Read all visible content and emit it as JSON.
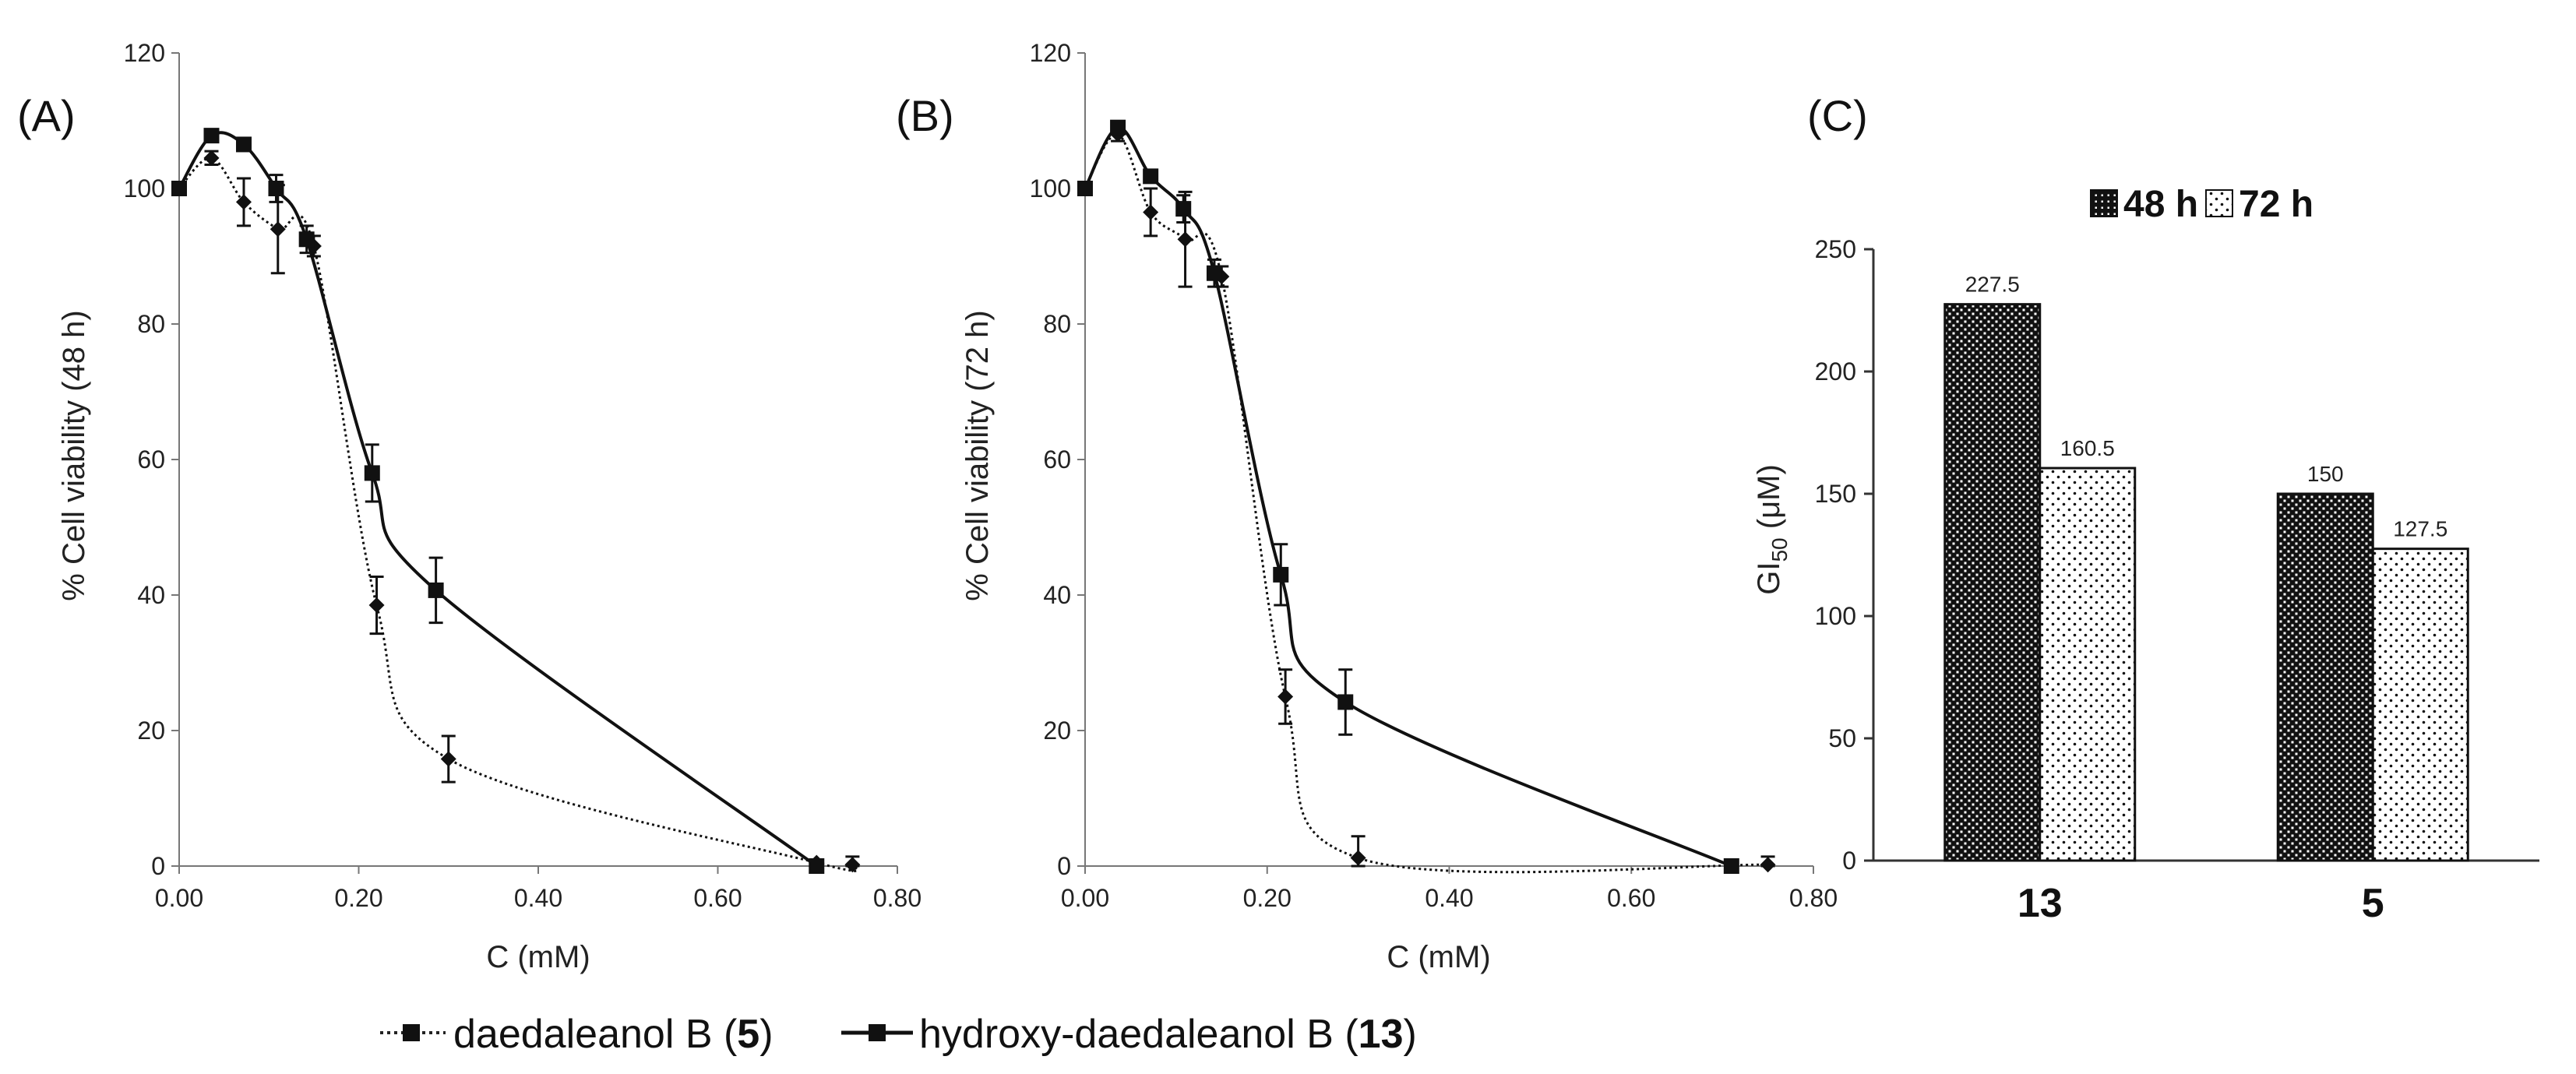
{
  "chart_data": [
    {
      "id": "A",
      "type": "line",
      "panel_label": "(A)",
      "xlabel": "C (mM)",
      "ylabel": "% Cell viability (48 h)",
      "xlim": [
        0,
        0.8
      ],
      "ylim": [
        0,
        120
      ],
      "xticks": [
        "0.00",
        "0.20",
        "0.40",
        "0.60",
        "0.80"
      ],
      "yticks": [
        "0",
        "20",
        "40",
        "60",
        "80",
        "100",
        "120"
      ],
      "series": [
        {
          "name": "daedaleanol B (5)",
          "style": "dotted",
          "marker": "diamond",
          "x": [
            0,
            0.036,
            0.072,
            0.11,
            0.15,
            0.22,
            0.3,
            0.71,
            0.75
          ],
          "y": [
            100,
            104.5,
            98,
            94,
            91.5,
            38.5,
            15.8,
            0.5,
            0.2
          ],
          "err": [
            0,
            1.0,
            3.5,
            6.5,
            1.5,
            4.2,
            3.4,
            0,
            1.2
          ]
        },
        {
          "name": "hydroxy-daedaleanol B (13)",
          "style": "solid",
          "marker": "square",
          "x": [
            0,
            0.036,
            0.072,
            0.108,
            0.142,
            0.215,
            0.286,
            0.71
          ],
          "y": [
            100,
            107.8,
            106.5,
            100,
            92.5,
            58,
            40.7,
            0
          ],
          "err": [
            0,
            0,
            0,
            2.0,
            2.0,
            4.2,
            4.8,
            0
          ]
        }
      ]
    },
    {
      "id": "B",
      "type": "line",
      "panel_label": "(B)",
      "xlabel": "C (mM)",
      "ylabel": "% Cell viability (72 h)",
      "xlim": [
        0,
        0.8
      ],
      "ylim": [
        0,
        120
      ],
      "xticks": [
        "0.00",
        "0.20",
        "0.40",
        "0.60",
        "0.80"
      ],
      "yticks": [
        "0",
        "20",
        "40",
        "60",
        "80",
        "100",
        "120"
      ],
      "series": [
        {
          "name": "daedaleanol B (5)",
          "style": "dotted",
          "marker": "diamond",
          "x": [
            0,
            0.036,
            0.072,
            0.11,
            0.15,
            0.22,
            0.3,
            0.75
          ],
          "y": [
            100,
            108,
            96.5,
            92.5,
            87,
            25,
            1.2,
            0.2
          ],
          "err": [
            0,
            1.0,
            3.5,
            7.0,
            1.5,
            4.0,
            3.2,
            1.2
          ]
        },
        {
          "name": "hydroxy-daedaleanol B (13)",
          "style": "solid",
          "marker": "square",
          "x": [
            0,
            0.036,
            0.072,
            0.108,
            0.142,
            0.215,
            0.286,
            0.71
          ],
          "y": [
            100,
            109,
            101.8,
            97,
            87.5,
            43,
            24.2,
            0
          ],
          "err": [
            0,
            0,
            0,
            2.0,
            2.0,
            4.5,
            4.8,
            0
          ]
        }
      ]
    },
    {
      "id": "C",
      "type": "bar",
      "panel_label": "(C)",
      "ylabel_main": "GI",
      "ylabel_sub": "50",
      "ylabel_unit": " (μM)",
      "ylim": [
        0,
        250
      ],
      "yticks": [
        "0",
        "50",
        "100",
        "150",
        "200",
        "250"
      ],
      "categories": [
        "13",
        "5"
      ],
      "series": [
        {
          "name": "48 h",
          "values": [
            227.5,
            150
          ],
          "labels": [
            "227.5",
            "150"
          ],
          "pattern": "dense"
        },
        {
          "name": "72 h",
          "values": [
            160.5,
            127.5
          ],
          "labels": [
            "160.5",
            "127.5"
          ],
          "pattern": "sparse"
        }
      ]
    }
  ],
  "legend": {
    "series_a_prefix": "daedaleanol B (",
    "series_a_bold": "5",
    "series_a_suffix": ")",
    "series_b_prefix": "hydroxy-daedaleanol B (",
    "series_b_bold": "13",
    "series_b_suffix": ")"
  }
}
